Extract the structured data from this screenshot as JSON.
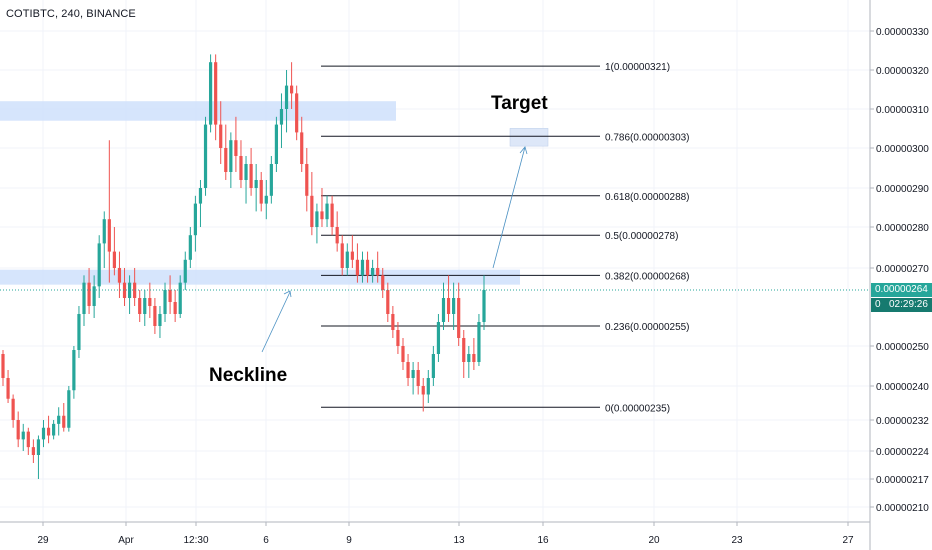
{
  "header": {
    "title": "COTIBTC, 240, BINANCE"
  },
  "price_tags": {
    "last_price": "0.00000264",
    "countdown": "02:29:26",
    "hidden_label": "0"
  },
  "colors": {
    "up": "#26a69a",
    "down": "#ef5350",
    "zone": "#cfe0fb",
    "fib_line": "#131722",
    "annotation": "#4a90c2"
  },
  "chart_data": {
    "type": "candlestick",
    "symbol": "COTIBTC",
    "interval": "240",
    "exchange": "BINANCE",
    "x_ticks": [
      "29",
      "Apr",
      "12:30",
      "6",
      "9",
      "13",
      "16",
      "20",
      "23",
      "27"
    ],
    "y_ticks": [
      "0.00000330",
      "0.00000320",
      "0.00000310",
      "0.00000300",
      "0.00000290",
      "0.00000280",
      "0.00000270",
      "0.00000250",
      "0.00000240",
      "0.00000232",
      "0.00000224",
      "0.00000217",
      "0.00000210"
    ],
    "y_range": [
      2.06e-06,
      3.35e-06
    ],
    "fib_levels": [
      {
        "ratio": "1",
        "label": "1(0.00000321)",
        "price": 3.21e-06
      },
      {
        "ratio": "0.786",
        "label": "0.786(0.00000303)",
        "price": 3.03e-06
      },
      {
        "ratio": "0.618",
        "label": "0.618(0.00000288)",
        "price": 2.88e-06
      },
      {
        "ratio": "0.5",
        "label": "0.5(0.00000278)",
        "price": 2.78e-06
      },
      {
        "ratio": "0.382",
        "label": "0.382(0.00000268)",
        "price": 2.68e-06
      },
      {
        "ratio": "0.236",
        "label": "0.236(0.00000255)",
        "price": 2.55e-06
      },
      {
        "ratio": "0",
        "label": "0(0.00000235)",
        "price": 2.35e-06
      }
    ],
    "annotations": {
      "target": "Target",
      "neckline": "Neckline"
    },
    "last_price": 2.64e-06,
    "zones": [
      {
        "name": "upper-zone",
        "price_low": 3.07e-06,
        "price_high": 3.12e-06
      },
      {
        "name": "neckline-zone",
        "price_low": 2.66e-06,
        "price_high": 2.69e-06
      },
      {
        "name": "target-zone",
        "price_low": 3.01e-06,
        "price_high": 3.04e-06
      }
    ],
    "candles": [
      {
        "o": 2.48,
        "h": 2.49,
        "l": 2.4,
        "c": 2.42
      },
      {
        "o": 2.42,
        "h": 2.44,
        "l": 2.36,
        "c": 2.37
      },
      {
        "o": 2.37,
        "h": 2.38,
        "l": 2.3,
        "c": 2.32
      },
      {
        "o": 2.32,
        "h": 2.34,
        "l": 2.25,
        "c": 2.27
      },
      {
        "o": 2.27,
        "h": 2.31,
        "l": 2.24,
        "c": 2.29
      },
      {
        "o": 2.29,
        "h": 2.3,
        "l": 2.23,
        "c": 2.25
      },
      {
        "o": 2.25,
        "h": 2.27,
        "l": 2.21,
        "c": 2.23
      },
      {
        "o": 2.23,
        "h": 2.28,
        "l": 2.17,
        "c": 2.27
      },
      {
        "o": 2.27,
        "h": 2.32,
        "l": 2.25,
        "c": 2.3
      },
      {
        "o": 2.3,
        "h": 2.33,
        "l": 2.26,
        "c": 2.28
      },
      {
        "o": 2.28,
        "h": 2.32,
        "l": 2.27,
        "c": 2.31
      },
      {
        "o": 2.31,
        "h": 2.35,
        "l": 2.28,
        "c": 2.33
      },
      {
        "o": 2.33,
        "h": 2.36,
        "l": 2.29,
        "c": 2.3
      },
      {
        "o": 2.3,
        "h": 2.4,
        "l": 2.29,
        "c": 2.39
      },
      {
        "o": 2.39,
        "h": 2.5,
        "l": 2.37,
        "c": 2.49
      },
      {
        "o": 2.49,
        "h": 2.6,
        "l": 2.47,
        "c": 2.58
      },
      {
        "o": 2.58,
        "h": 2.68,
        "l": 2.55,
        "c": 2.66
      },
      {
        "o": 2.66,
        "h": 2.7,
        "l": 2.58,
        "c": 2.6
      },
      {
        "o": 2.6,
        "h": 2.68,
        "l": 2.57,
        "c": 2.65
      },
      {
        "o": 2.65,
        "h": 2.78,
        "l": 2.62,
        "c": 2.76
      },
      {
        "o": 2.76,
        "h": 2.84,
        "l": 2.7,
        "c": 2.82
      },
      {
        "o": 2.82,
        "h": 3.02,
        "l": 2.66,
        "c": 2.74
      },
      {
        "o": 2.74,
        "h": 2.8,
        "l": 2.68,
        "c": 2.7
      },
      {
        "o": 2.7,
        "h": 2.74,
        "l": 2.62,
        "c": 2.66
      },
      {
        "o": 2.66,
        "h": 2.7,
        "l": 2.6,
        "c": 2.62
      },
      {
        "o": 2.62,
        "h": 2.68,
        "l": 2.58,
        "c": 2.66
      },
      {
        "o": 2.66,
        "h": 2.7,
        "l": 2.6,
        "c": 2.62
      },
      {
        "o": 2.62,
        "h": 2.64,
        "l": 2.56,
        "c": 2.58
      },
      {
        "o": 2.58,
        "h": 2.64,
        "l": 2.55,
        "c": 2.62
      },
      {
        "o": 2.62,
        "h": 2.66,
        "l": 2.57,
        "c": 2.6
      },
      {
        "o": 2.6,
        "h": 2.62,
        "l": 2.53,
        "c": 2.55
      },
      {
        "o": 2.55,
        "h": 2.6,
        "l": 2.52,
        "c": 2.58
      },
      {
        "o": 2.58,
        "h": 2.66,
        "l": 2.56,
        "c": 2.64
      },
      {
        "o": 2.64,
        "h": 2.68,
        "l": 2.58,
        "c": 2.61
      },
      {
        "o": 2.61,
        "h": 2.64,
        "l": 2.56,
        "c": 2.58
      },
      {
        "o": 2.58,
        "h": 2.68,
        "l": 2.57,
        "c": 2.66
      },
      {
        "o": 2.66,
        "h": 2.74,
        "l": 2.64,
        "c": 2.72
      },
      {
        "o": 2.72,
        "h": 2.8,
        "l": 2.7,
        "c": 2.78
      },
      {
        "o": 2.78,
        "h": 2.88,
        "l": 2.74,
        "c": 2.86
      },
      {
        "o": 2.86,
        "h": 2.92,
        "l": 2.8,
        "c": 2.9
      },
      {
        "o": 2.9,
        "h": 3.08,
        "l": 2.88,
        "c": 3.06
      },
      {
        "o": 3.06,
        "h": 3.24,
        "l": 3.04,
        "c": 3.22
      },
      {
        "o": 3.22,
        "h": 3.24,
        "l": 3.02,
        "c": 3.06
      },
      {
        "o": 3.06,
        "h": 3.12,
        "l": 2.96,
        "c": 3.0
      },
      {
        "o": 3.0,
        "h": 3.06,
        "l": 2.92,
        "c": 2.94
      },
      {
        "o": 2.94,
        "h": 3.04,
        "l": 2.9,
        "c": 3.02
      },
      {
        "o": 3.02,
        "h": 3.08,
        "l": 2.94,
        "c": 2.98
      },
      {
        "o": 2.98,
        "h": 3.02,
        "l": 2.9,
        "c": 2.92
      },
      {
        "o": 2.92,
        "h": 2.98,
        "l": 2.86,
        "c": 2.96
      },
      {
        "o": 2.96,
        "h": 3.0,
        "l": 2.88,
        "c": 2.9
      },
      {
        "o": 2.9,
        "h": 2.96,
        "l": 2.84,
        "c": 2.92
      },
      {
        "o": 2.92,
        "h": 2.94,
        "l": 2.84,
        "c": 2.86
      },
      {
        "o": 2.86,
        "h": 2.92,
        "l": 2.82,
        "c": 2.88
      },
      {
        "o": 2.88,
        "h": 2.98,
        "l": 2.86,
        "c": 2.96
      },
      {
        "o": 2.96,
        "h": 3.08,
        "l": 2.94,
        "c": 3.06
      },
      {
        "o": 3.06,
        "h": 3.14,
        "l": 3.0,
        "c": 3.1
      },
      {
        "o": 3.1,
        "h": 3.2,
        "l": 3.04,
        "c": 3.16
      },
      {
        "o": 3.16,
        "h": 3.22,
        "l": 3.1,
        "c": 3.14
      },
      {
        "o": 3.14,
        "h": 3.16,
        "l": 3.02,
        "c": 3.04
      },
      {
        "o": 3.04,
        "h": 3.08,
        "l": 2.94,
        "c": 2.96
      },
      {
        "o": 2.96,
        "h": 3.0,
        "l": 2.84,
        "c": 2.88
      },
      {
        "o": 2.88,
        "h": 2.94,
        "l": 2.78,
        "c": 2.8
      },
      {
        "o": 2.8,
        "h": 2.86,
        "l": 2.76,
        "c": 2.84
      },
      {
        "o": 2.84,
        "h": 2.9,
        "l": 2.8,
        "c": 2.82
      },
      {
        "o": 2.82,
        "h": 2.88,
        "l": 2.8,
        "c": 2.86
      },
      {
        "o": 2.86,
        "h": 2.88,
        "l": 2.78,
        "c": 2.8
      },
      {
        "o": 2.8,
        "h": 2.84,
        "l": 2.74,
        "c": 2.76
      },
      {
        "o": 2.76,
        "h": 2.78,
        "l": 2.68,
        "c": 2.7
      },
      {
        "o": 2.7,
        "h": 2.76,
        "l": 2.68,
        "c": 2.74
      },
      {
        "o": 2.74,
        "h": 2.78,
        "l": 2.7,
        "c": 2.72
      },
      {
        "o": 2.72,
        "h": 2.76,
        "l": 2.66,
        "c": 2.68
      },
      {
        "o": 2.68,
        "h": 2.74,
        "l": 2.66,
        "c": 2.72
      },
      {
        "o": 2.72,
        "h": 2.74,
        "l": 2.66,
        "c": 2.68
      },
      {
        "o": 2.68,
        "h": 2.72,
        "l": 2.66,
        "c": 2.7
      },
      {
        "o": 2.7,
        "h": 2.74,
        "l": 2.66,
        "c": 2.68
      },
      {
        "o": 2.68,
        "h": 2.7,
        "l": 2.62,
        "c": 2.64
      },
      {
        "o": 2.64,
        "h": 2.66,
        "l": 2.56,
        "c": 2.58
      },
      {
        "o": 2.58,
        "h": 2.6,
        "l": 2.52,
        "c": 2.54
      },
      {
        "o": 2.54,
        "h": 2.56,
        "l": 2.48,
        "c": 2.5
      },
      {
        "o": 2.5,
        "h": 2.52,
        "l": 2.44,
        "c": 2.46
      },
      {
        "o": 2.46,
        "h": 2.48,
        "l": 2.4,
        "c": 2.42
      },
      {
        "o": 2.42,
        "h": 2.46,
        "l": 2.38,
        "c": 2.44
      },
      {
        "o": 2.44,
        "h": 2.46,
        "l": 2.38,
        "c": 2.4
      },
      {
        "o": 2.4,
        "h": 2.42,
        "l": 2.34,
        "c": 2.38
      },
      {
        "o": 2.38,
        "h": 2.44,
        "l": 2.36,
        "c": 2.42
      },
      {
        "o": 2.42,
        "h": 2.5,
        "l": 2.4,
        "c": 2.48
      },
      {
        "o": 2.48,
        "h": 2.58,
        "l": 2.46,
        "c": 2.56
      },
      {
        "o": 2.56,
        "h": 2.66,
        "l": 2.54,
        "c": 2.62
      },
      {
        "o": 2.62,
        "h": 2.68,
        "l": 2.56,
        "c": 2.58
      },
      {
        "o": 2.58,
        "h": 2.66,
        "l": 2.54,
        "c": 2.62
      },
      {
        "o": 2.62,
        "h": 2.66,
        "l": 2.5,
        "c": 2.52
      },
      {
        "o": 2.52,
        "h": 2.54,
        "l": 2.42,
        "c": 2.46
      },
      {
        "o": 2.46,
        "h": 2.5,
        "l": 2.42,
        "c": 2.48
      },
      {
        "o": 2.48,
        "h": 2.52,
        "l": 2.44,
        "c": 2.46
      },
      {
        "o": 2.46,
        "h": 2.58,
        "l": 2.45,
        "c": 2.56
      },
      {
        "o": 2.56,
        "h": 2.68,
        "l": 2.54,
        "c": 2.64
      }
    ]
  }
}
